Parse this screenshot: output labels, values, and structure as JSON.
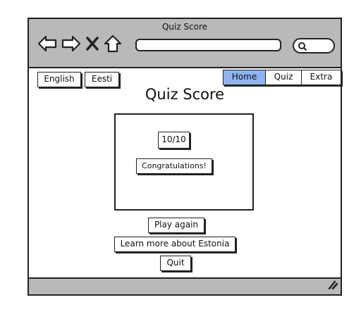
{
  "window": {
    "title": "Quiz Score"
  },
  "browser": {
    "icons": [
      "back-arrow-icon",
      "forward-arrow-icon",
      "close-x-icon",
      "home-icon",
      "search-icon",
      "resize-grip-icon"
    ]
  },
  "language": {
    "english_label": "English",
    "estonian_label": "Eesti"
  },
  "tabs": [
    {
      "label": "Home",
      "active": true
    },
    {
      "label": "Quiz",
      "active": false
    },
    {
      "label": "Extra",
      "active": false
    }
  ],
  "main": {
    "title": "Quiz Score",
    "score": "10/10",
    "message": "Congratulations!"
  },
  "actions": {
    "play_again": "Play again",
    "learn_more": "Learn more about Estonia",
    "quit": "Quit"
  },
  "colors": {
    "chrome": "#b9b9b9",
    "active_tab": "#8fb3f0",
    "stroke": "#222222"
  }
}
